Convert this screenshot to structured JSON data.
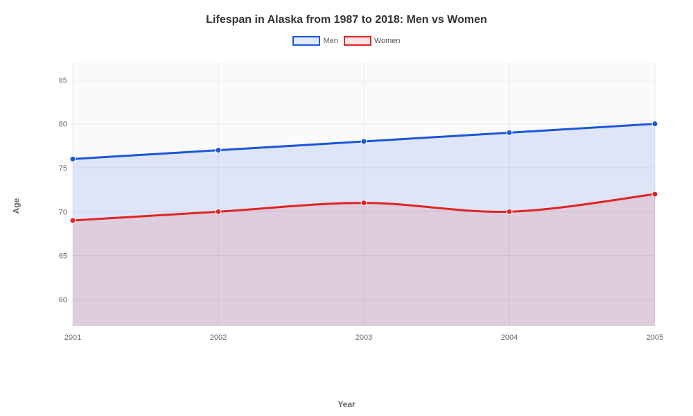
{
  "chart": {
    "type": "area-line",
    "title": "Lifespan in Alaska from 1987 to 2018: Men vs Women",
    "title_fontsize": 16,
    "title_color": "#333333",
    "xlabel": "Year",
    "ylabel": "Age",
    "label_fontsize": 12,
    "label_color": "#666666",
    "background_color": "#ffffff",
    "plot_background_color": "#fafafa",
    "grid_color": "#e8e8e8",
    "xlim": [
      2001,
      2005
    ],
    "ylim": [
      57,
      87
    ],
    "ytick_step": 5,
    "yticks": [
      60,
      65,
      70,
      75,
      80,
      85
    ],
    "xticks": [
      2001,
      2002,
      2003,
      2004,
      2005
    ],
    "line_width": 3,
    "marker_radius": 4,
    "series": [
      {
        "name": "Men",
        "color": "#1a56db",
        "fill_color": "rgba(26,86,219,0.12)",
        "x": [
          2001,
          2002,
          2003,
          2004,
          2005
        ],
        "y": [
          76,
          77,
          78,
          79,
          80
        ]
      },
      {
        "name": "Women",
        "color": "#e02424",
        "fill_color": "rgba(224,36,36,0.12)",
        "x": [
          2001,
          2002,
          2003,
          2004,
          2005
        ],
        "y": [
          69,
          70,
          71,
          70,
          72
        ]
      }
    ],
    "tick_fontsize": 11,
    "tick_color": "#666666"
  }
}
